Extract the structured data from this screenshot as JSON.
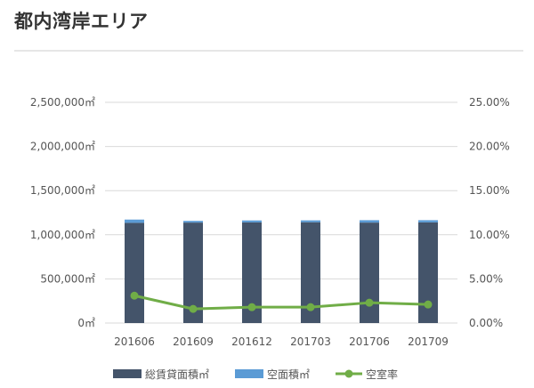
{
  "page": {
    "title": "都内湾岸エリア"
  },
  "chart_data": {
    "type": "bar",
    "categories": [
      "201606",
      "201609",
      "201612",
      "201703",
      "201706",
      "201709"
    ],
    "series": [
      {
        "name": "総賃貸面積㎡",
        "kind": "stacked-bar",
        "axis": "left",
        "color": "#44546a",
        "values": [
          1135000,
          1138000,
          1140000,
          1142000,
          1138000,
          1140000
        ]
      },
      {
        "name": "空面積㎡",
        "kind": "stacked-bar",
        "axis": "left",
        "color": "#5b9bd5",
        "values": [
          37000,
          19000,
          22000,
          21000,
          27000,
          25000
        ]
      },
      {
        "name": "空室率",
        "kind": "line",
        "axis": "right",
        "color": "#70ad47",
        "values": [
          0.031,
          0.016,
          0.018,
          0.018,
          0.023,
          0.021
        ]
      }
    ],
    "y_left": {
      "lim": [
        0,
        2500000
      ],
      "ticks": [
        0,
        500000,
        1000000,
        1500000,
        2000000,
        2500000
      ],
      "tick_labels": [
        "0㎡",
        "500,000㎡",
        "1,000,000㎡",
        "1,500,000㎡",
        "2,000,000㎡",
        "2,500,000㎡"
      ]
    },
    "y_right": {
      "lim": [
        0,
        0.25
      ],
      "ticks": [
        0,
        0.05,
        0.1,
        0.15,
        0.2,
        0.25
      ],
      "tick_labels": [
        "0.00%",
        "5.00%",
        "10.00%",
        "15.00%",
        "20.00%",
        "25.00%"
      ]
    },
    "grid": true,
    "legend": "bottom",
    "colors": {
      "grid": "#d9d9d9",
      "divider": "#e6e6e6"
    }
  }
}
